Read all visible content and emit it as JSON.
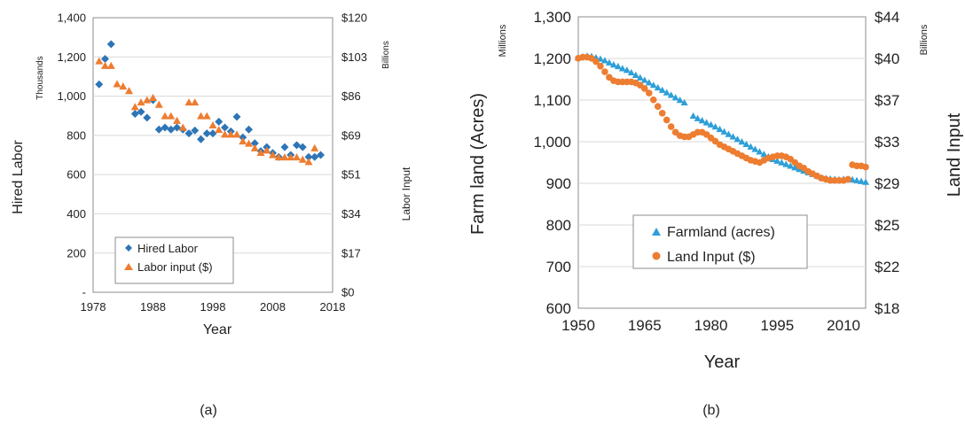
{
  "chart_data": [
    {
      "type": "scatter",
      "panel_label": "(a)",
      "xlabel": "Year",
      "ylabel_left": "Hired Labor",
      "ylabel_left_units": "Thousands",
      "ylabel_right": "Labor Input",
      "ylabel_right_units": "Billions",
      "xlim": [
        1978,
        2018
      ],
      "x_ticks": [
        "1978",
        "1988",
        "1998",
        "2008",
        "2018"
      ],
      "ylim_left": [
        0,
        1400
      ],
      "y_ticks_left": [
        "-",
        "200",
        "400",
        "600",
        "800",
        "1,000",
        "1,200",
        "1,400"
      ],
      "ylim_right": [
        0,
        120
      ],
      "y_ticks_right": [
        "$0",
        "$17",
        "$34",
        "$51",
        "$69",
        "$86",
        "$103",
        "$120"
      ],
      "grid": "horizontal",
      "legend_position": "bottom-left",
      "series": [
        {
          "name": "Hired Labor",
          "axis": "left",
          "marker": "diamond",
          "color": "#2e75b6",
          "x": [
            1979,
            1980,
            1981,
            1985,
            1986,
            1987,
            1988,
            1989,
            1990,
            1991,
            1992,
            1993,
            1994,
            1995,
            1996,
            1997,
            1998,
            1999,
            2000,
            2001,
            2002,
            2003,
            2004,
            2005,
            2006,
            2007,
            2008,
            2009,
            2010,
            2011,
            2012,
            2013,
            2014,
            2015,
            2016
          ],
          "y": [
            1060,
            1190,
            1265,
            910,
            920,
            890,
            980,
            830,
            840,
            830,
            840,
            830,
            810,
            825,
            780,
            810,
            810,
            870,
            840,
            820,
            895,
            790,
            830,
            760,
            720,
            740,
            710,
            690,
            740,
            700,
            750,
            740,
            690,
            690,
            700
          ]
        },
        {
          "name": "Labor input ($)",
          "axis": "right",
          "marker": "triangle",
          "color": "#ed7d31",
          "x": [
            1979,
            1980,
            1981,
            1982,
            1983,
            1984,
            1985,
            1986,
            1987,
            1988,
            1989,
            1990,
            1991,
            1992,
            1993,
            1994,
            1995,
            1996,
            1997,
            1998,
            1999,
            2000,
            2001,
            2002,
            2003,
            2004,
            2005,
            2006,
            2007,
            2008,
            2009,
            2010,
            2011,
            2012,
            2013,
            2014,
            2015
          ],
          "y": [
            101,
            99,
            99,
            91,
            90,
            88,
            81,
            83,
            84,
            85,
            82,
            77,
            77,
            75,
            72,
            83,
            83,
            77,
            77,
            73,
            71,
            69,
            69,
            69,
            66,
            65,
            63,
            61,
            62,
            60,
            59,
            59,
            59,
            59,
            58,
            57,
            63
          ]
        }
      ]
    },
    {
      "type": "scatter",
      "panel_label": "(b)",
      "xlabel": "Year",
      "ylabel_left": "Farm land (Acres)",
      "ylabel_left_units": "Millions",
      "ylabel_right": "Land Input",
      "ylabel_right_units": "Billions",
      "xlim": [
        1950,
        2015
      ],
      "x_ticks": [
        "1950",
        "1965",
        "1980",
        "1995",
        "2010"
      ],
      "ylim_left": [
        600,
        1300
      ],
      "y_ticks_left": [
        "600",
        "700",
        "800",
        "900",
        "1,000",
        "1,100",
        "1,200",
        "1,300"
      ],
      "ylim_right": [
        18,
        44
      ],
      "y_ticks_right": [
        "$18",
        "$22",
        "$25",
        "$29",
        "$33",
        "$37",
        "$40",
        "$44"
      ],
      "grid": "horizontal",
      "legend_position": "bottom-left",
      "series": [
        {
          "name": "Farmland (acres)",
          "axis": "left",
          "marker": "triangle",
          "color": "#2e9fd8",
          "x": [
            1950,
            1951,
            1952,
            1953,
            1954,
            1955,
            1956,
            1957,
            1958,
            1959,
            1960,
            1961,
            1962,
            1963,
            1964,
            1965,
            1966,
            1967,
            1968,
            1969,
            1970,
            1971,
            1972,
            1973,
            1974,
            1976,
            1977,
            1978,
            1979,
            1980,
            1981,
            1982,
            1983,
            1984,
            1985,
            1986,
            1987,
            1988,
            1989,
            1990,
            1991,
            1992,
            1993,
            1994,
            1995,
            1996,
            1997,
            1998,
            1999,
            2000,
            2001,
            2002,
            2003,
            2004,
            2005,
            2006,
            2007,
            2008,
            2009,
            2010,
            2011,
            2012,
            2013,
            2014,
            2015
          ],
          "y": [
            1202,
            1204,
            1206,
            1205,
            1202,
            1199,
            1195,
            1190,
            1185,
            1181,
            1176,
            1172,
            1166,
            1160,
            1154,
            1148,
            1142,
            1136,
            1130,
            1124,
            1118,
            1112,
            1106,
            1100,
            1094,
            1062,
            1056,
            1051,
            1046,
            1041,
            1036,
            1030,
            1024,
            1018,
            1012,
            1006,
            1000,
            994,
            988,
            982,
            976,
            970,
            964,
            958,
            954,
            950,
            946,
            942,
            938,
            934,
            930,
            926,
            922,
            918,
            914,
            912,
            911,
            910,
            909,
            910,
            910,
            909,
            907,
            905,
            903
          ]
        },
        {
          "name": "Land Input ($)",
          "axis": "right",
          "marker": "circle",
          "color": "#ed7d31",
          "x": [
            1950,
            1951,
            1952,
            1953,
            1954,
            1955,
            1956,
            1957,
            1958,
            1959,
            1960,
            1961,
            1962,
            1963,
            1964,
            1965,
            1966,
            1967,
            1968,
            1969,
            1970,
            1971,
            1972,
            1973,
            1974,
            1975,
            1976,
            1977,
            1978,
            1979,
            1980,
            1981,
            1982,
            1983,
            1984,
            1985,
            1986,
            1987,
            1988,
            1989,
            1990,
            1991,
            1992,
            1993,
            1994,
            1995,
            1996,
            1997,
            1998,
            1999,
            2000,
            2001,
            2002,
            2003,
            2004,
            2005,
            2006,
            2007,
            2008,
            2009,
            2010,
            2011,
            2012,
            2013,
            2014,
            2015
          ],
          "y": [
            40.3,
            40.4,
            40.4,
            40.3,
            40.0,
            39.6,
            39.1,
            38.6,
            38.3,
            38.2,
            38.2,
            38.2,
            38.2,
            38.1,
            37.9,
            37.6,
            37.2,
            36.6,
            36.0,
            35.4,
            34.8,
            34.2,
            33.7,
            33.4,
            33.3,
            33.3,
            33.5,
            33.7,
            33.7,
            33.5,
            33.2,
            32.9,
            32.6,
            32.4,
            32.2,
            32.0,
            31.8,
            31.6,
            31.4,
            31.2,
            31.1,
            31.0,
            31.2,
            31.4,
            31.5,
            31.6,
            31.6,
            31.5,
            31.3,
            31.0,
            30.7,
            30.5,
            30.2,
            30.0,
            29.8,
            29.6,
            29.5,
            29.4,
            29.4,
            29.4,
            29.4,
            29.5,
            30.8,
            30.7,
            30.7,
            30.6
          ]
        }
      ]
    }
  ]
}
